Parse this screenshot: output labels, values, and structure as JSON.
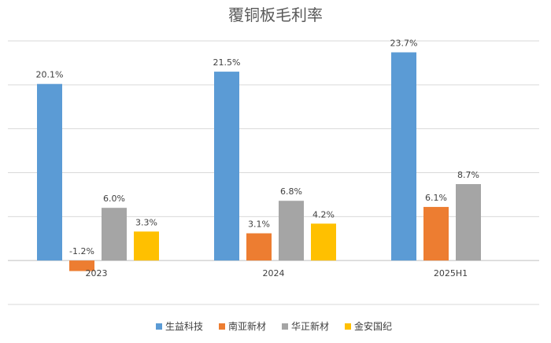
{
  "chart_data": {
    "type": "bar",
    "title": "覆铜板毛利率",
    "categories": [
      "2023",
      "2024",
      "2025H1"
    ],
    "series": [
      {
        "name": "生益科技",
        "color": "#5B9BD5",
        "values": [
          20.1,
          21.5,
          23.7
        ],
        "labels": [
          "20.1%",
          "21.5%",
          "23.7%"
        ]
      },
      {
        "name": "南亚新材",
        "color": "#ED7D31",
        "values": [
          -1.2,
          3.1,
          6.1
        ],
        "labels": [
          "-1.2%",
          "3.1%",
          "6.1%"
        ]
      },
      {
        "name": "华正新材",
        "color": "#A5A5A5",
        "values": [
          6.0,
          6.8,
          8.7
        ],
        "labels": [
          "6.0%",
          "6.8%",
          "8.7%"
        ]
      },
      {
        "name": "金安国纪",
        "color": "#FFC000",
        "values": [
          3.3,
          4.2,
          null
        ],
        "labels": [
          "3.3%",
          "4.2%",
          ""
        ]
      }
    ],
    "ylim": [
      -5,
      25
    ],
    "grid": true,
    "legend": "bottom"
  }
}
